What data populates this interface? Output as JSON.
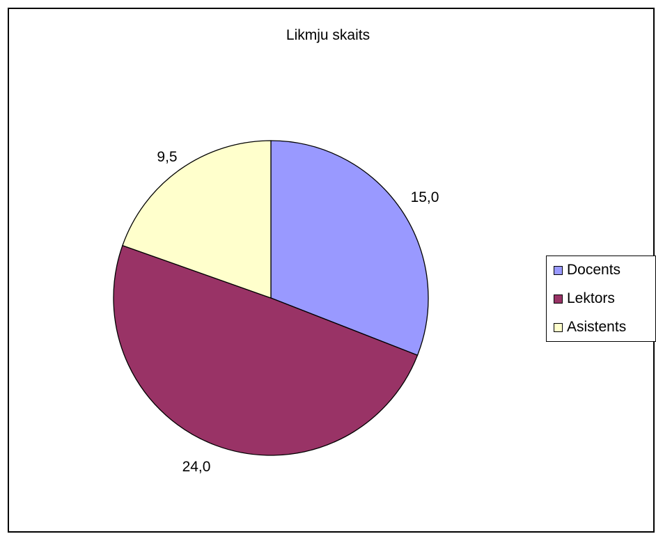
{
  "chart_data": {
    "type": "pie",
    "title": "Likmju skaits",
    "categories": [
      "Docents",
      "Lektors",
      "Asistents"
    ],
    "values": [
      15.0,
      24.0,
      9.5
    ],
    "data_labels": [
      "15,0",
      "24,0",
      "9,5"
    ],
    "colors": [
      "#9999ff",
      "#993366",
      "#ffffcc"
    ],
    "legend_position": "right"
  }
}
